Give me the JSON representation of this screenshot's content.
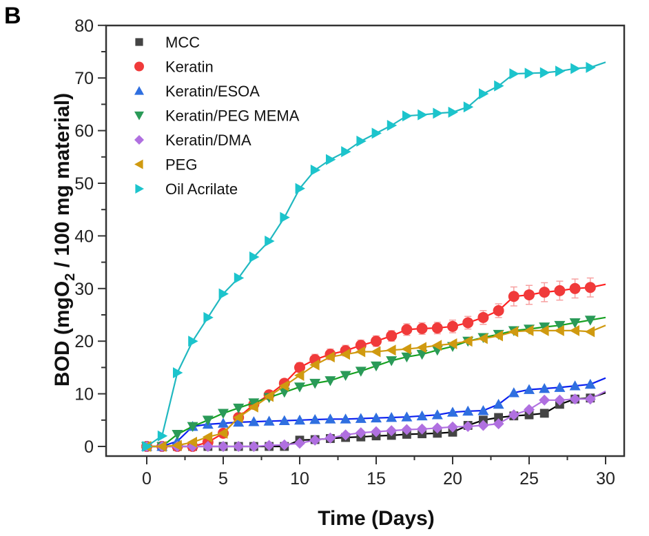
{
  "chart_data": {
    "type": "line",
    "panel_label": "B",
    "title": "",
    "xlabel": "Time (Days)",
    "ylabel": {
      "prefix": "BOD (mgO",
      "sub": "2",
      "suffix": " / 100 mg material)"
    },
    "xlim": [
      -2,
      31
    ],
    "ylim": [
      -2,
      80
    ],
    "xticks": [
      0,
      5,
      10,
      15,
      20,
      25,
      30
    ],
    "yticks": [
      0,
      10,
      20,
      30,
      40,
      50,
      60,
      70,
      80
    ],
    "grid": false,
    "legend_position": "top-left",
    "series": [
      {
        "name": "MCC",
        "color": "#444444",
        "line_color": "#000000",
        "marker": "square",
        "x": [
          0,
          1,
          2,
          3,
          4,
          5,
          6,
          7,
          8,
          9,
          10,
          11,
          12,
          13,
          14,
          15,
          16,
          17,
          18,
          19,
          20,
          21,
          22,
          23,
          24,
          25,
          26,
          27,
          28,
          29,
          30
        ],
        "y": [
          0,
          0,
          0,
          0,
          0,
          0,
          0,
          0,
          0,
          0,
          1.2,
          1.3,
          1.5,
          1.7,
          1.8,
          2.0,
          2.1,
          2.3,
          2.4,
          2.5,
          2.7,
          4.0,
          5.0,
          5.5,
          5.8,
          6.0,
          6.3,
          8.0,
          9.0,
          9.2,
          10.2
        ]
      },
      {
        "name": "Keratin",
        "color": "#f03a3a",
        "line_color": "#ff2020",
        "marker": "circle",
        "error_bars": true,
        "x": [
          0,
          1,
          2,
          3,
          4,
          5,
          6,
          7,
          8,
          9,
          10,
          11,
          12,
          13,
          14,
          15,
          16,
          17,
          18,
          19,
          20,
          21,
          22,
          23,
          24,
          25,
          26,
          27,
          28,
          29,
          30
        ],
        "y": [
          0,
          0,
          0,
          0,
          0.8,
          2.5,
          5.5,
          8.0,
          9.8,
          12.0,
          15.0,
          16.5,
          17.5,
          18.2,
          19.2,
          20.0,
          21.0,
          22.2,
          22.4,
          22.5,
          22.8,
          23.5,
          24.5,
          25.8,
          28.5,
          28.8,
          29.3,
          29.6,
          30.0,
          30.2,
          30.8
        ],
        "err": [
          0,
          0,
          0,
          0,
          0.5,
          0.5,
          0.6,
          0.7,
          0.8,
          0.8,
          0.9,
          1.0,
          1.0,
          1.0,
          1.0,
          1.0,
          1.0,
          1.1,
          1.1,
          1.1,
          1.2,
          1.2,
          1.3,
          1.3,
          1.8,
          1.8,
          1.8,
          1.8,
          1.8,
          1.8,
          0
        ]
      },
      {
        "name": "Keratin/ESOA",
        "color": "#2f6fe0",
        "line_color": "#0a1ff0",
        "marker": "triangle-up",
        "x": [
          0,
          1,
          2,
          3,
          4,
          5,
          6,
          7,
          8,
          9,
          10,
          11,
          12,
          13,
          14,
          15,
          16,
          17,
          18,
          19,
          20,
          21,
          22,
          23,
          24,
          25,
          26,
          27,
          28,
          29,
          30
        ],
        "y": [
          0,
          0,
          1.0,
          3.8,
          4.2,
          4.4,
          4.6,
          4.7,
          4.8,
          4.9,
          5.0,
          5.1,
          5.2,
          5.2,
          5.3,
          5.4,
          5.5,
          5.6,
          5.8,
          6.0,
          6.5,
          6.7,
          6.8,
          8.0,
          10.2,
          10.8,
          11.0,
          11.2,
          11.5,
          11.8,
          13.0
        ]
      },
      {
        "name": "Keratin/PEG MEMA",
        "color": "#2a9a58",
        "line_color": "#15a020",
        "marker": "triangle-down",
        "x": [
          0,
          1,
          2,
          3,
          4,
          5,
          6,
          7,
          8,
          9,
          10,
          11,
          12,
          13,
          14,
          15,
          16,
          17,
          18,
          19,
          20,
          21,
          22,
          23,
          24,
          25,
          26,
          27,
          28,
          29,
          30
        ],
        "y": [
          0,
          0,
          2.3,
          3.8,
          5.0,
          6.3,
          7.3,
          8.3,
          9.3,
          10.3,
          11.3,
          12.0,
          12.5,
          13.5,
          14.3,
          15.3,
          16.3,
          17.0,
          17.5,
          18.3,
          19.0,
          20.0,
          20.7,
          21.3,
          22.0,
          22.3,
          22.7,
          23.0,
          23.5,
          24.0,
          24.5
        ]
      },
      {
        "name": "Keratin/DMA",
        "color": "#b070e0",
        "line_color": "#b070e0",
        "marker": "diamond",
        "x": [
          0,
          1,
          2,
          3,
          4,
          5,
          6,
          7,
          8,
          9,
          10,
          11,
          12,
          13,
          14,
          15,
          16,
          17,
          18,
          19,
          20,
          21,
          22,
          23,
          24,
          25,
          26,
          27,
          28,
          29,
          30
        ],
        "y": [
          0,
          0,
          0,
          0,
          0,
          0,
          0,
          0,
          0.2,
          0.3,
          0.6,
          1.2,
          1.6,
          2.2,
          2.6,
          2.8,
          3.0,
          3.2,
          3.3,
          3.5,
          3.7,
          3.8,
          4.0,
          4.3,
          6.0,
          7.0,
          8.8,
          8.8,
          9.0,
          9.0,
          10.5
        ]
      },
      {
        "name": "PEG",
        "color": "#d09a10",
        "line_color": "#d09a10",
        "marker": "triangle-left",
        "x": [
          0,
          1,
          2,
          3,
          4,
          5,
          6,
          7,
          8,
          9,
          10,
          11,
          12,
          13,
          14,
          15,
          16,
          17,
          18,
          19,
          20,
          21,
          22,
          23,
          24,
          25,
          26,
          27,
          28,
          29,
          30
        ],
        "y": [
          0,
          0,
          0.2,
          0.8,
          1.8,
          2.5,
          5.5,
          7.5,
          9.5,
          11.5,
          13.5,
          15.5,
          17.0,
          17.5,
          18.0,
          18.0,
          18.3,
          18.5,
          18.8,
          19.2,
          19.5,
          20.0,
          20.5,
          21.0,
          21.8,
          22.0,
          22.0,
          22.0,
          22.0,
          21.8,
          23.0
        ]
      },
      {
        "name": "Oil Acrilate",
        "color": "#1cc4cc",
        "line_color": "#20b8c0",
        "marker": "triangle-right",
        "x": [
          0,
          1,
          2,
          3,
          4,
          5,
          6,
          7,
          8,
          9,
          10,
          11,
          12,
          13,
          14,
          15,
          16,
          17,
          18,
          19,
          20,
          21,
          22,
          23,
          24,
          25,
          26,
          27,
          28,
          29,
          30
        ],
        "y": [
          0,
          2,
          14,
          20,
          24.5,
          29,
          32,
          36,
          39,
          43.5,
          49,
          52.5,
          54.5,
          56,
          58,
          59.5,
          61,
          62.8,
          63,
          63.3,
          63.5,
          64.5,
          67,
          68.5,
          70.8,
          70.9,
          71,
          71.3,
          71.8,
          72,
          73
        ]
      }
    ]
  }
}
